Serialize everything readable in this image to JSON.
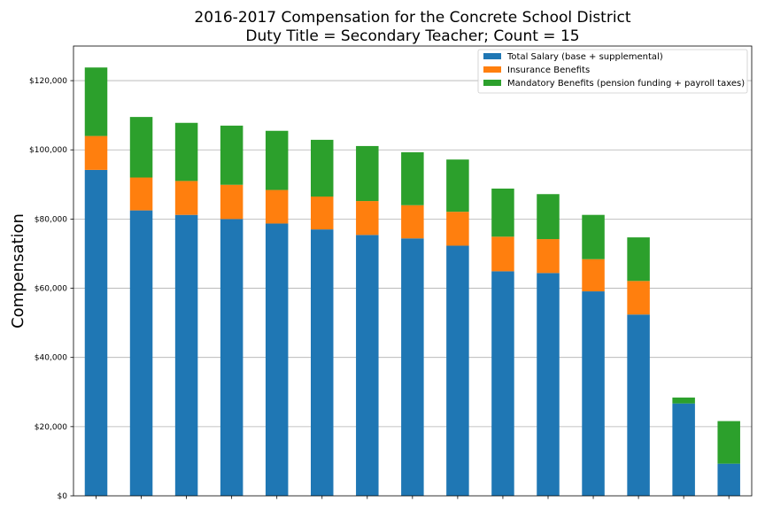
{
  "chart_data": {
    "type": "bar",
    "stacked": true,
    "title_lines": [
      "2016-2017 Compensation for the Concrete School District",
      "Duty Title = Secondary Teacher; Count = 15"
    ],
    "xlabel": "",
    "ylabel": "Compensation",
    "ylim": [
      0,
      130000
    ],
    "yticks": [
      0,
      20000,
      40000,
      60000,
      80000,
      100000,
      120000
    ],
    "ytick_labels": [
      "$0",
      "$20,000",
      "$40,000",
      "$60,000",
      "$80,000",
      "$100,000",
      "$120,000"
    ],
    "grid": "y",
    "legend_position": "top-right",
    "categories": [
      "",
      "",
      "",
      "",
      "",
      "",
      "",
      "",
      "",
      "",
      "",
      "",
      "",
      "",
      ""
    ],
    "series": [
      {
        "name": "Total Salary (base + supplemental)",
        "color": "#1f77b4",
        "values": [
          94200,
          82500,
          81200,
          80000,
          78700,
          77000,
          75400,
          74400,
          72300,
          64900,
          64400,
          59100,
          52400,
          26700,
          9300
        ]
      },
      {
        "name": "Insurance Benefits",
        "color": "#ff7f0e",
        "values": [
          9800,
          9500,
          9800,
          9900,
          9700,
          9500,
          9800,
          9600,
          9800,
          10000,
          9800,
          9300,
          9700,
          0,
          0
        ]
      },
      {
        "name": "Mandatory Benefits (pension funding + payroll taxes)",
        "color": "#2ca02c",
        "values": [
          19800,
          17500,
          16800,
          17100,
          17100,
          16400,
          15900,
          15300,
          15100,
          13900,
          13000,
          12800,
          12600,
          1700,
          12300
        ]
      }
    ]
  }
}
